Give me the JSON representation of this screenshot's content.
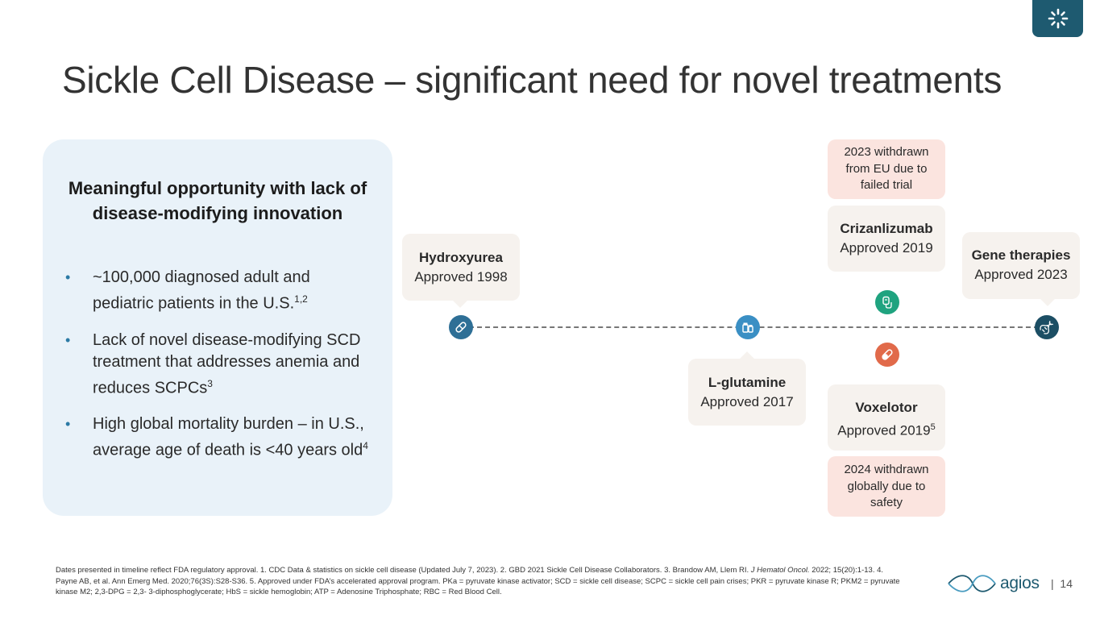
{
  "slide": {
    "title": "Sickle Cell Disease – significant need for novel treatments",
    "page_number": "14"
  },
  "panel": {
    "heading": "Meaningful opportunity with lack of disease-modifying innovation",
    "bullets": [
      {
        "text": "~100,000 diagnosed adult and pediatric patients in the U.S.",
        "sup": "1,2"
      },
      {
        "text": "Lack of novel disease-modifying SCD treatment that addresses anemia and reduces SCPCs",
        "sup": "3"
      },
      {
        "text": "High global mortality burden – in U.S., average age of death is <40 years old",
        "sup": "4"
      }
    ]
  },
  "timeline": {
    "hydroxyurea": {
      "name": "Hydroxyurea",
      "status": "Approved 1998"
    },
    "lglutamine": {
      "name": "L-glutamine",
      "status": "Approved 2017"
    },
    "crizanlizumab": {
      "name": "Crizanlizumab",
      "status": "Approved 2019"
    },
    "crizanlizumab_note": "2023 withdrawn from EU due to failed trial",
    "voxelotor": {
      "name": "Voxelotor",
      "status": "Approved 2019",
      "sup": "5"
    },
    "voxelotor_note": "2024 withdrawn globally due to safety",
    "gene": {
      "name": "Gene therapies",
      "status": "Approved 2023"
    }
  },
  "icons": {
    "hydroxyurea": "pill-icon",
    "lglutamine": "medicine-bottles-icon",
    "crizanlizumab": "iv-bag-icon",
    "voxelotor": "pill-icon",
    "gene": "dna-icon"
  },
  "colors": {
    "title": "#333333",
    "panel_bg": "#e9f2f9",
    "card_bg": "#f6f2ee",
    "note_bg": "#fbe4df",
    "hydroxyurea_node": "#2e6f96",
    "lglutamine_node": "#3a8fc4",
    "crizanlizumab_node": "#1fa37f",
    "voxelotor_node": "#e16a4a",
    "gene_node": "#1c4e64",
    "brand": "#1e5a70"
  },
  "footer": {
    "footnote_part1": "Dates presented in timeline reflect FDA regulatory approval. 1. CDC Data & statistics on sickle cell disease (Updated July 7, 2023). 2. GBD 2021 Sickle Cell Disease Collaborators. 3. Brandow AM, Llem RI.",
    "footnote_journal": "J Hematol Oncol.",
    "footnote_part2": "2022; 15(20):1-13. 4. Payne AB, et al. Ann Emerg Med. 2020;76(3S):S28-S36. 5. Approved under FDA’s accelerated approval program. PKa = pyruvate kinase activator; SCD = sickle cell disease; SCPC = sickle cell pain crises; PKR = pyruvate kinase R; PKM2 = pyruvate kinase M2; 2,3-DPG = 2,3- 3-diphosphoglycerate; HbS = sickle hemoglobin; ATP = Adenosine Triphosphate; RBC = Red Blood Cell.",
    "brand": "agios"
  }
}
